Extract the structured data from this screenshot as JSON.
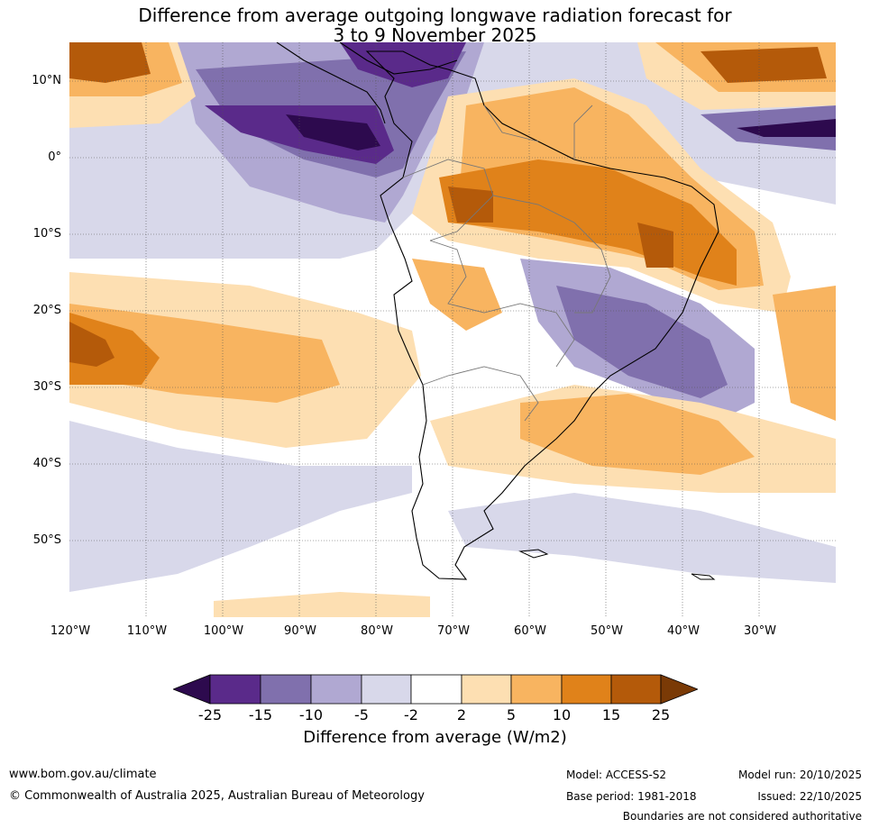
{
  "title": {
    "line1": "Difference from average outgoing longwave radiation forecast for",
    "line2": "3 to 9 November 2025"
  },
  "axes": {
    "lat_labels": [
      "10°N",
      "0°",
      "10°S",
      "20°S",
      "30°S",
      "40°S",
      "50°S"
    ],
    "lon_labels": [
      "120°W",
      "110°W",
      "100°W",
      "90°W",
      "80°W",
      "70°W",
      "60°W",
      "50°W",
      "40°W",
      "30°W"
    ]
  },
  "colorbar": {
    "ticks": [
      "-25",
      "-15",
      "-10",
      "-5",
      "-2",
      "2",
      "5",
      "10",
      "15",
      "25"
    ],
    "colors": [
      "#2d0a4e",
      "#5a2a8a",
      "#8070ad",
      "#b0a8d2",
      "#d8d8ea",
      "#ffffff",
      "#fddfb2",
      "#f8b460",
      "#e0821a",
      "#b45a0a",
      "#7a3a06"
    ],
    "label": "Difference from average (W/m2)"
  },
  "footer": {
    "website": "www.bom.gov.au/climate",
    "copyright": "© Commonwealth of Australia 2025, Australian Bureau of Meteorology",
    "model": "Model: ACCESS-S2",
    "base_period": "Base period: 1981-2018",
    "model_run": "Model run: 20/10/2025",
    "issued": "Issued: 22/10/2025",
    "disclaimer": "Boundaries are not considered authoritative"
  }
}
